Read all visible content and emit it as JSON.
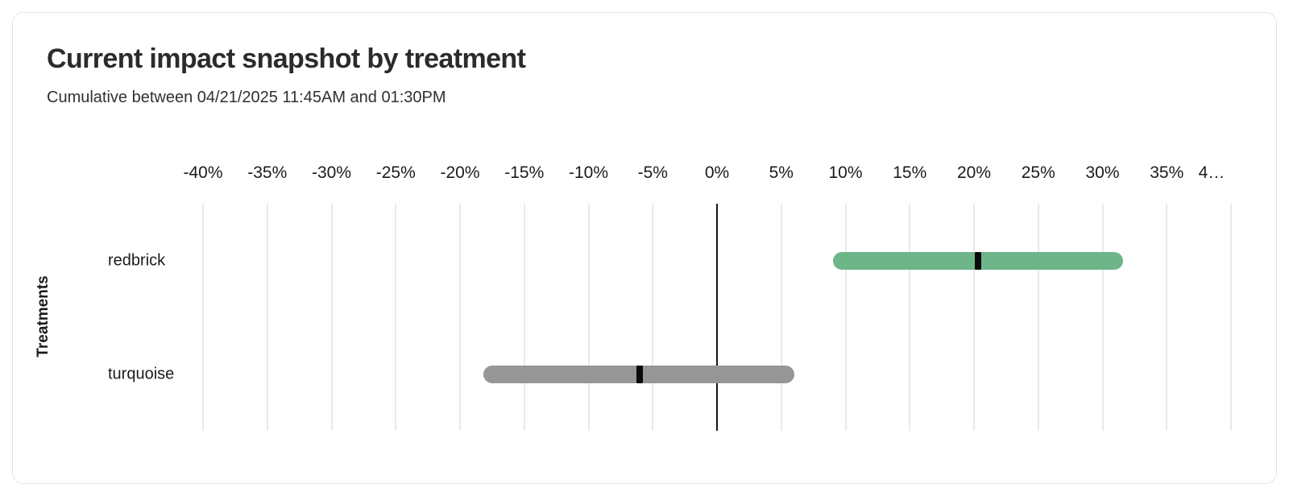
{
  "card": {
    "title": "Current impact snapshot by treatment",
    "subtitle": "Cumulative between 04/21/2025 11:45AM and 01:30PM"
  },
  "chart_data": {
    "type": "bar",
    "variant": "horizontal-range-with-point-estimate",
    "title": "Current impact snapshot by treatment",
    "subtitle": "Cumulative between 04/21/2025 11:45AM and 01:30PM",
    "xlabel": "",
    "ylabel": "Treatments",
    "xlim": [
      -40,
      40
    ],
    "tick_step_percent": 5,
    "tick_labels": [
      "-40%",
      "-35%",
      "-30%",
      "-25%",
      "-20%",
      "-15%",
      "-10%",
      "-5%",
      "0%",
      "5%",
      "10%",
      "15%",
      "20%",
      "25%",
      "30%",
      "35%",
      "4…"
    ],
    "grid": "vertical",
    "legend": "none",
    "categories": [
      "redbrick",
      "turquoise"
    ],
    "series": [
      {
        "name": "redbrick",
        "low_percent": 9,
        "high_percent": 31.6,
        "point_percent": 20.3,
        "color": "#6EB58A"
      },
      {
        "name": "turquoise",
        "low_percent": -18.2,
        "high_percent": 6,
        "point_percent": -6,
        "color": "#969696"
      }
    ],
    "colors": {
      "grid_line": "#e9e9e9",
      "zero_line": "#161616",
      "point_marker": "#0a0a0a",
      "bar_redbrick": "#6EB58A",
      "bar_turquoise": "#969696"
    }
  }
}
